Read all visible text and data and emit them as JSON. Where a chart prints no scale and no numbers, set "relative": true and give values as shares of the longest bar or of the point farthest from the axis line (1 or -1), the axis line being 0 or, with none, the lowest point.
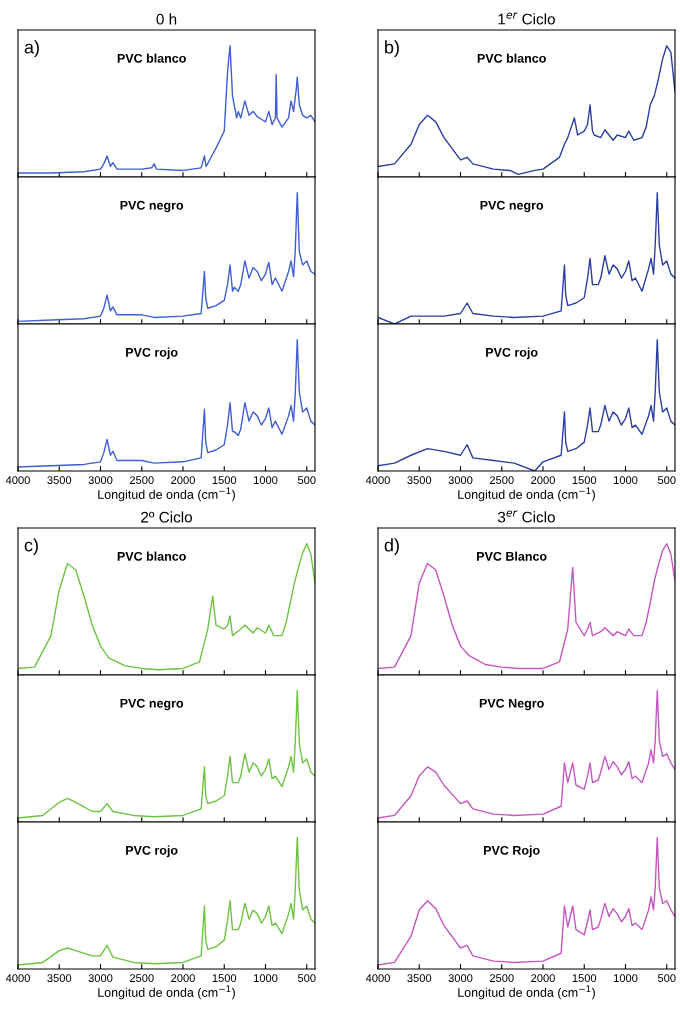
{
  "chart_data": [
    {
      "type": "line",
      "title": "0 h",
      "annotations": [
        "a)",
        "PVC blanco"
      ],
      "color": "#3f5fd0",
      "line_style": "solid",
      "relative": true,
      "xlim": [
        4000,
        400
      ],
      "xticks": [
        4000,
        3500,
        3000,
        2500,
        2000,
        1500,
        1000,
        500
      ],
      "tick_labels": false,
      "x": [
        4000,
        3600,
        3200,
        3000,
        2960,
        2920,
        2880,
        2850,
        2800,
        2500,
        2380,
        2350,
        2320,
        2000,
        1780,
        1740,
        1720,
        1600,
        1500,
        1460,
        1430,
        1400,
        1380,
        1350,
        1330,
        1300,
        1250,
        1200,
        1150,
        1100,
        1050,
        1000,
        960,
        920,
        880,
        870,
        860,
        800,
        720,
        690,
        660,
        630,
        615,
        590,
        550,
        500,
        450,
        400
      ],
      "values": [
        0.03,
        0.03,
        0.04,
        0.06,
        0.1,
        0.16,
        0.08,
        0.11,
        0.06,
        0.06,
        0.07,
        0.1,
        0.06,
        0.05,
        0.07,
        0.16,
        0.08,
        0.22,
        0.35,
        0.8,
        1.0,
        0.62,
        0.55,
        0.45,
        0.5,
        0.45,
        0.58,
        0.47,
        0.5,
        0.46,
        0.44,
        0.42,
        0.5,
        0.4,
        0.45,
        0.78,
        0.45,
        0.38,
        0.45,
        0.58,
        0.5,
        0.65,
        0.76,
        0.55,
        0.47,
        0.45,
        0.47,
        0.42
      ]
    },
    {
      "type": "line",
      "annotations": [
        "PVC negro"
      ],
      "color": "#3f5fd0",
      "line_style": "solid",
      "relative": true,
      "xlim": [
        4000,
        400
      ],
      "xticks": [
        4000,
        3500,
        3000,
        2500,
        2000,
        1500,
        1000,
        500
      ],
      "tick_labels": false,
      "x": [
        4000,
        3600,
        3200,
        3000,
        2960,
        2920,
        2880,
        2850,
        2800,
        2500,
        2350,
        2000,
        1780,
        1740,
        1725,
        1700,
        1600,
        1500,
        1460,
        1430,
        1400,
        1380,
        1330,
        1300,
        1250,
        1200,
        1150,
        1100,
        1050,
        1000,
        960,
        920,
        880,
        800,
        720,
        690,
        660,
        640,
        615,
        590,
        550,
        500,
        450,
        400
      ],
      "values": [
        0.02,
        0.03,
        0.04,
        0.06,
        0.12,
        0.22,
        0.1,
        0.13,
        0.07,
        0.07,
        0.05,
        0.06,
        0.08,
        0.4,
        0.2,
        0.12,
        0.14,
        0.18,
        0.3,
        0.45,
        0.25,
        0.28,
        0.25,
        0.3,
        0.48,
        0.35,
        0.43,
        0.4,
        0.33,
        0.38,
        0.47,
        0.3,
        0.35,
        0.25,
        0.4,
        0.48,
        0.36,
        0.55,
        1.0,
        0.55,
        0.45,
        0.48,
        0.4,
        0.38
      ]
    },
    {
      "type": "line",
      "annotations": [
        "PVC rojo"
      ],
      "xlabel": "Longitud de onda (cm$^{−1}$)",
      "color": "#3f5fd0",
      "line_style": "solid",
      "relative": true,
      "xlim": [
        4000,
        400
      ],
      "xticks": [
        4000,
        3500,
        3000,
        2500,
        2000,
        1500,
        1000,
        500
      ],
      "tick_labels": "x",
      "x": [
        4000,
        3600,
        3200,
        3000,
        2960,
        2920,
        2880,
        2850,
        2800,
        2500,
        2350,
        2000,
        1780,
        1740,
        1725,
        1700,
        1600,
        1500,
        1460,
        1430,
        1400,
        1380,
        1330,
        1300,
        1250,
        1200,
        1150,
        1100,
        1050,
        1000,
        960,
        920,
        880,
        800,
        720,
        690,
        660,
        640,
        615,
        590,
        550,
        500,
        450,
        400
      ],
      "values": [
        0.03,
        0.04,
        0.05,
        0.07,
        0.14,
        0.24,
        0.12,
        0.15,
        0.08,
        0.08,
        0.06,
        0.07,
        0.1,
        0.47,
        0.22,
        0.14,
        0.16,
        0.2,
        0.35,
        0.52,
        0.3,
        0.3,
        0.27,
        0.32,
        0.52,
        0.38,
        0.45,
        0.42,
        0.35,
        0.4,
        0.48,
        0.33,
        0.38,
        0.28,
        0.42,
        0.5,
        0.38,
        0.58,
        1.0,
        0.6,
        0.45,
        0.48,
        0.38,
        0.35
      ]
    },
    {
      "type": "line",
      "title": "1$^{er}$ Ciclo",
      "annotations": [
        "b)",
        "PVC blanco"
      ],
      "color": "#2b3f9e",
      "line_style": "solid",
      "relative": true,
      "xlim": [
        4000,
        400
      ],
      "xticks": [
        4000,
        3500,
        3000,
        2500,
        2000,
        1500,
        1000,
        500
      ],
      "tick_labels": false,
      "x": [
        4000,
        3800,
        3600,
        3500,
        3400,
        3300,
        3200,
        3000,
        2920,
        2850,
        2600,
        2400,
        2300,
        2100,
        2000,
        1800,
        1740,
        1700,
        1620,
        1580,
        1500,
        1460,
        1430,
        1400,
        1380,
        1300,
        1250,
        1150,
        1100,
        1000,
        960,
        900,
        800,
        750,
        700,
        650,
        600,
        550,
        500,
        450,
        400
      ],
      "values": [
        0.08,
        0.1,
        0.25,
        0.4,
        0.47,
        0.42,
        0.3,
        0.13,
        0.15,
        0.1,
        0.06,
        0.05,
        0.02,
        0.05,
        0.06,
        0.15,
        0.25,
        0.3,
        0.45,
        0.32,
        0.35,
        0.4,
        0.55,
        0.35,
        0.32,
        0.3,
        0.36,
        0.28,
        0.32,
        0.3,
        0.35,
        0.28,
        0.3,
        0.38,
        0.55,
        0.62,
        0.75,
        0.9,
        1.0,
        0.95,
        0.65
      ]
    },
    {
      "type": "line",
      "annotations": [
        "PVC negro"
      ],
      "color": "#2b3f9e",
      "line_style": "solid",
      "relative": true,
      "xlim": [
        4000,
        400
      ],
      "xticks": [
        4000,
        3500,
        3000,
        2500,
        2000,
        1500,
        1000,
        500
      ],
      "tick_labels": false,
      "x": [
        4000,
        3800,
        3600,
        3200,
        3000,
        2920,
        2850,
        2600,
        2350,
        2000,
        1780,
        1740,
        1725,
        1700,
        1600,
        1500,
        1460,
        1430,
        1400,
        1330,
        1300,
        1250,
        1200,
        1150,
        1100,
        1050,
        1000,
        960,
        920,
        880,
        800,
        720,
        690,
        660,
        640,
        615,
        590,
        550,
        500,
        450,
        400
      ],
      "values": [
        0.05,
        0.0,
        0.06,
        0.06,
        0.08,
        0.16,
        0.08,
        0.06,
        0.05,
        0.06,
        0.1,
        0.45,
        0.22,
        0.14,
        0.16,
        0.2,
        0.35,
        0.5,
        0.3,
        0.3,
        0.35,
        0.52,
        0.38,
        0.45,
        0.42,
        0.35,
        0.4,
        0.48,
        0.33,
        0.35,
        0.25,
        0.42,
        0.5,
        0.38,
        0.6,
        1.0,
        0.6,
        0.45,
        0.48,
        0.38,
        0.35
      ]
    },
    {
      "type": "line",
      "annotations": [
        "PVC rojo"
      ],
      "xlabel": "Longitud de onda (cm$^{−1}$)",
      "color": "#2b3f9e",
      "line_style": "solid",
      "relative": true,
      "xlim": [
        4000,
        400
      ],
      "xticks": [
        4000,
        3500,
        3000,
        2500,
        2000,
        1500,
        1000,
        500
      ],
      "tick_labels": "x",
      "x": [
        4000,
        3800,
        3600,
        3400,
        3200,
        3000,
        2920,
        2850,
        2600,
        2350,
        2100,
        2000,
        1780,
        1740,
        1725,
        1700,
        1600,
        1500,
        1460,
        1430,
        1400,
        1330,
        1300,
        1250,
        1200,
        1150,
        1100,
        1050,
        1000,
        960,
        920,
        880,
        800,
        720,
        690,
        660,
        640,
        615,
        590,
        550,
        500,
        450,
        400
      ],
      "values": [
        0.04,
        0.06,
        0.12,
        0.17,
        0.15,
        0.12,
        0.2,
        0.1,
        0.08,
        0.06,
        0.0,
        0.07,
        0.12,
        0.45,
        0.22,
        0.15,
        0.17,
        0.22,
        0.35,
        0.48,
        0.3,
        0.3,
        0.35,
        0.5,
        0.38,
        0.45,
        0.42,
        0.35,
        0.4,
        0.48,
        0.33,
        0.35,
        0.28,
        0.42,
        0.5,
        0.38,
        0.6,
        1.0,
        0.6,
        0.45,
        0.48,
        0.38,
        0.35
      ]
    },
    {
      "type": "line",
      "title": "2º Ciclo",
      "annotations": [
        "c)",
        "PVC blanco"
      ],
      "color": "#6cc440",
      "line_style": "solid",
      "relative": true,
      "xlim": [
        4000,
        400
      ],
      "xticks": [
        4000,
        3500,
        3000,
        2500,
        2000,
        1500,
        1000,
        500
      ],
      "tick_labels": false,
      "x": [
        4000,
        3800,
        3600,
        3500,
        3400,
        3300,
        3200,
        3100,
        3000,
        2900,
        2700,
        2500,
        2300,
        2000,
        1800,
        1700,
        1640,
        1600,
        1500,
        1460,
        1430,
        1400,
        1300,
        1250,
        1150,
        1100,
        1000,
        960,
        900,
        800,
        750,
        700,
        650,
        600,
        550,
        500,
        450,
        400
      ],
      "values": [
        0.05,
        0.06,
        0.3,
        0.65,
        0.85,
        0.8,
        0.6,
        0.38,
        0.22,
        0.13,
        0.07,
        0.05,
        0.04,
        0.05,
        0.1,
        0.35,
        0.6,
        0.38,
        0.35,
        0.38,
        0.45,
        0.3,
        0.35,
        0.38,
        0.32,
        0.36,
        0.32,
        0.38,
        0.3,
        0.3,
        0.4,
        0.55,
        0.7,
        0.82,
        0.93,
        1.0,
        0.92,
        0.7
      ]
    },
    {
      "type": "line",
      "annotations": [
        "PVC negro"
      ],
      "color": "#6cc440",
      "line_style": "solid",
      "relative": true,
      "xlim": [
        4000,
        400
      ],
      "xticks": [
        4000,
        3500,
        3000,
        2500,
        2000,
        1500,
        1000,
        500
      ],
      "tick_labels": false,
      "x": [
        4000,
        3700,
        3500,
        3400,
        3300,
        3100,
        3000,
        2920,
        2850,
        2600,
        2350,
        2000,
        1780,
        1740,
        1725,
        1700,
        1600,
        1500,
        1460,
        1430,
        1400,
        1330,
        1300,
        1250,
        1200,
        1150,
        1100,
        1050,
        1000,
        960,
        920,
        880,
        800,
        720,
        690,
        660,
        640,
        615,
        590,
        550,
        500,
        450,
        400
      ],
      "values": [
        0.03,
        0.05,
        0.15,
        0.18,
        0.15,
        0.08,
        0.08,
        0.14,
        0.08,
        0.05,
        0.04,
        0.05,
        0.1,
        0.42,
        0.2,
        0.14,
        0.16,
        0.2,
        0.35,
        0.5,
        0.3,
        0.3,
        0.35,
        0.52,
        0.38,
        0.45,
        0.42,
        0.35,
        0.4,
        0.48,
        0.33,
        0.35,
        0.27,
        0.42,
        0.5,
        0.38,
        0.6,
        1.0,
        0.6,
        0.45,
        0.48,
        0.38,
        0.35
      ]
    },
    {
      "type": "line",
      "annotations": [
        "PVC rojo"
      ],
      "xlabel": "Longitud de onda (cm$^{−1}$)",
      "color": "#6cc440",
      "line_style": "solid",
      "relative": true,
      "xlim": [
        4000,
        400
      ],
      "xticks": [
        4000,
        3500,
        3000,
        2500,
        2000,
        1500,
        1000,
        500
      ],
      "tick_labels": "x",
      "x": [
        4000,
        3700,
        3500,
        3400,
        3300,
        3100,
        3000,
        2920,
        2850,
        2600,
        2350,
        2000,
        1780,
        1740,
        1725,
        1700,
        1600,
        1500,
        1460,
        1430,
        1400,
        1330,
        1300,
        1250,
        1200,
        1150,
        1100,
        1050,
        1000,
        960,
        920,
        880,
        800,
        720,
        690,
        660,
        640,
        615,
        590,
        550,
        500,
        450,
        400
      ],
      "values": [
        0.03,
        0.05,
        0.14,
        0.16,
        0.14,
        0.1,
        0.1,
        0.18,
        0.09,
        0.05,
        0.04,
        0.05,
        0.1,
        0.48,
        0.22,
        0.15,
        0.17,
        0.22,
        0.37,
        0.52,
        0.3,
        0.3,
        0.35,
        0.5,
        0.38,
        0.45,
        0.42,
        0.35,
        0.4,
        0.48,
        0.33,
        0.35,
        0.27,
        0.42,
        0.5,
        0.38,
        0.6,
        1.0,
        0.6,
        0.45,
        0.48,
        0.38,
        0.35
      ]
    },
    {
      "type": "line",
      "title": "3$^{er}$ Ciclo",
      "annotations": [
        "d)",
        "PVC Blanco"
      ],
      "color": "#c656c2",
      "line_style": "solid",
      "relative": true,
      "xlim": [
        4000,
        400
      ],
      "xticks": [
        4000,
        3500,
        3000,
        2500,
        2000,
        1500,
        1000,
        500
      ],
      "tick_labels": false,
      "x": [
        4000,
        3800,
        3600,
        3500,
        3400,
        3300,
        3200,
        3100,
        3000,
        2900,
        2700,
        2500,
        2300,
        2000,
        1800,
        1700,
        1640,
        1600,
        1500,
        1460,
        1430,
        1400,
        1300,
        1250,
        1150,
        1100,
        1000,
        960,
        900,
        800,
        750,
        700,
        650,
        600,
        550,
        500,
        450,
        400
      ],
      "values": [
        0.05,
        0.06,
        0.3,
        0.7,
        0.85,
        0.8,
        0.6,
        0.38,
        0.22,
        0.15,
        0.08,
        0.06,
        0.05,
        0.05,
        0.1,
        0.35,
        0.82,
        0.4,
        0.3,
        0.35,
        0.4,
        0.3,
        0.33,
        0.36,
        0.3,
        0.33,
        0.3,
        0.35,
        0.3,
        0.3,
        0.4,
        0.55,
        0.72,
        0.84,
        0.95,
        1.0,
        0.92,
        0.72
      ]
    },
    {
      "type": "line",
      "annotations": [
        "PVC Negro"
      ],
      "color": "#c656c2",
      "line_style": "solid",
      "relative": true,
      "xlim": [
        4000,
        400
      ],
      "xticks": [
        4000,
        3500,
        3000,
        2500,
        2000,
        1500,
        1000,
        500
      ],
      "tick_labels": false,
      "x": [
        4000,
        3800,
        3600,
        3500,
        3400,
        3300,
        3200,
        3000,
        2920,
        2850,
        2600,
        2350,
        2000,
        1780,
        1740,
        1700,
        1640,
        1600,
        1500,
        1460,
        1430,
        1400,
        1330,
        1300,
        1250,
        1200,
        1150,
        1100,
        1050,
        1000,
        960,
        920,
        880,
        800,
        720,
        690,
        660,
        640,
        615,
        590,
        550,
        500,
        450,
        400
      ],
      "values": [
        0.03,
        0.05,
        0.2,
        0.35,
        0.42,
        0.38,
        0.28,
        0.14,
        0.16,
        0.1,
        0.06,
        0.05,
        0.06,
        0.12,
        0.45,
        0.3,
        0.45,
        0.28,
        0.25,
        0.35,
        0.45,
        0.3,
        0.32,
        0.38,
        0.5,
        0.4,
        0.46,
        0.42,
        0.36,
        0.4,
        0.46,
        0.33,
        0.35,
        0.3,
        0.45,
        0.55,
        0.45,
        0.62,
        1.0,
        0.62,
        0.5,
        0.52,
        0.45,
        0.4
      ]
    },
    {
      "type": "line",
      "annotations": [
        "PVC Rojo"
      ],
      "xlabel": "Longitud de onda (cm$^{−1}$)",
      "color": "#c656c2",
      "line_style": "solid",
      "relative": true,
      "xlim": [
        4000,
        400
      ],
      "xticks": [
        4000,
        3500,
        3000,
        2500,
        2000,
        1500,
        1000,
        500
      ],
      "tick_labels": "x",
      "x": [
        4000,
        3800,
        3600,
        3500,
        3400,
        3300,
        3200,
        3000,
        2920,
        2850,
        2600,
        2350,
        2000,
        1780,
        1740,
        1700,
        1640,
        1600,
        1500,
        1460,
        1430,
        1400,
        1330,
        1300,
        1250,
        1200,
        1150,
        1100,
        1050,
        1000,
        960,
        920,
        880,
        800,
        720,
        690,
        660,
        640,
        615,
        590,
        550,
        500,
        450,
        400
      ],
      "values": [
        0.03,
        0.05,
        0.25,
        0.45,
        0.52,
        0.46,
        0.33,
        0.16,
        0.18,
        0.1,
        0.06,
        0.05,
        0.06,
        0.12,
        0.48,
        0.32,
        0.48,
        0.3,
        0.26,
        0.36,
        0.45,
        0.3,
        0.32,
        0.38,
        0.5,
        0.4,
        0.46,
        0.42,
        0.36,
        0.4,
        0.46,
        0.33,
        0.35,
        0.3,
        0.45,
        0.55,
        0.45,
        0.62,
        1.0,
        0.62,
        0.5,
        0.52,
        0.45,
        0.4
      ]
    }
  ]
}
